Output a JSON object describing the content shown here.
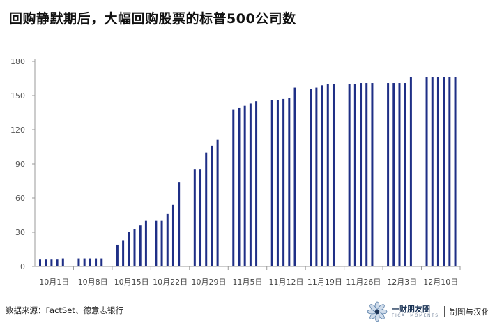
{
  "title": "回购静默期后，大幅回购股票的标普500公司数",
  "source": "数据来源：FactSet、德意志银行",
  "brand": {
    "name": "一财朋友圈",
    "sub": "FICAI MOMENTS",
    "note": "制图与汉化"
  },
  "colors": {
    "bar": "#1f2f86",
    "axis": "#999999",
    "text": "#111111"
  },
  "chart_data": {
    "type": "bar",
    "title": "",
    "xlabel": "",
    "ylabel": "",
    "ylim": [
      0,
      180
    ],
    "yticks": [
      0,
      30,
      60,
      90,
      120,
      150,
      180
    ],
    "grid": false,
    "legend": "none",
    "tick_labels": [
      "10月1日",
      "10月8日",
      "10月15日",
      "10月22日",
      "10月29日",
      "11月5日",
      "11月12日",
      "11月19日",
      "11月26日",
      "12月3日",
      "12月10日"
    ],
    "groups": [
      {
        "label": "10月1日",
        "values": [
          6,
          6,
          6,
          6,
          7
        ]
      },
      {
        "label": "10月8日",
        "values": [
          7,
          7,
          7,
          7,
          7
        ]
      },
      {
        "label": "10月15日",
        "values": [
          19,
          23,
          30,
          33,
          36,
          40
        ]
      },
      {
        "label": "10月22日",
        "values": [
          40,
          40,
          46,
          54,
          74
        ]
      },
      {
        "label": "10月29日",
        "values": [
          85,
          85,
          100,
          106,
          111
        ]
      },
      {
        "label": "11月5日",
        "values": [
          138,
          139,
          141,
          143,
          145
        ]
      },
      {
        "label": "11月12日",
        "values": [
          146,
          146,
          147,
          148,
          157
        ]
      },
      {
        "label": "11月19日",
        "values": [
          156,
          157,
          159,
          160,
          160
        ]
      },
      {
        "label": "11月26日",
        "values": [
          160,
          160,
          161,
          161,
          161
        ]
      },
      {
        "label": "12月3日",
        "values": [
          161,
          161,
          161,
          161,
          166
        ]
      },
      {
        "label": "12月10日",
        "values": [
          166,
          166,
          166,
          166,
          166,
          166
        ]
      }
    ]
  }
}
